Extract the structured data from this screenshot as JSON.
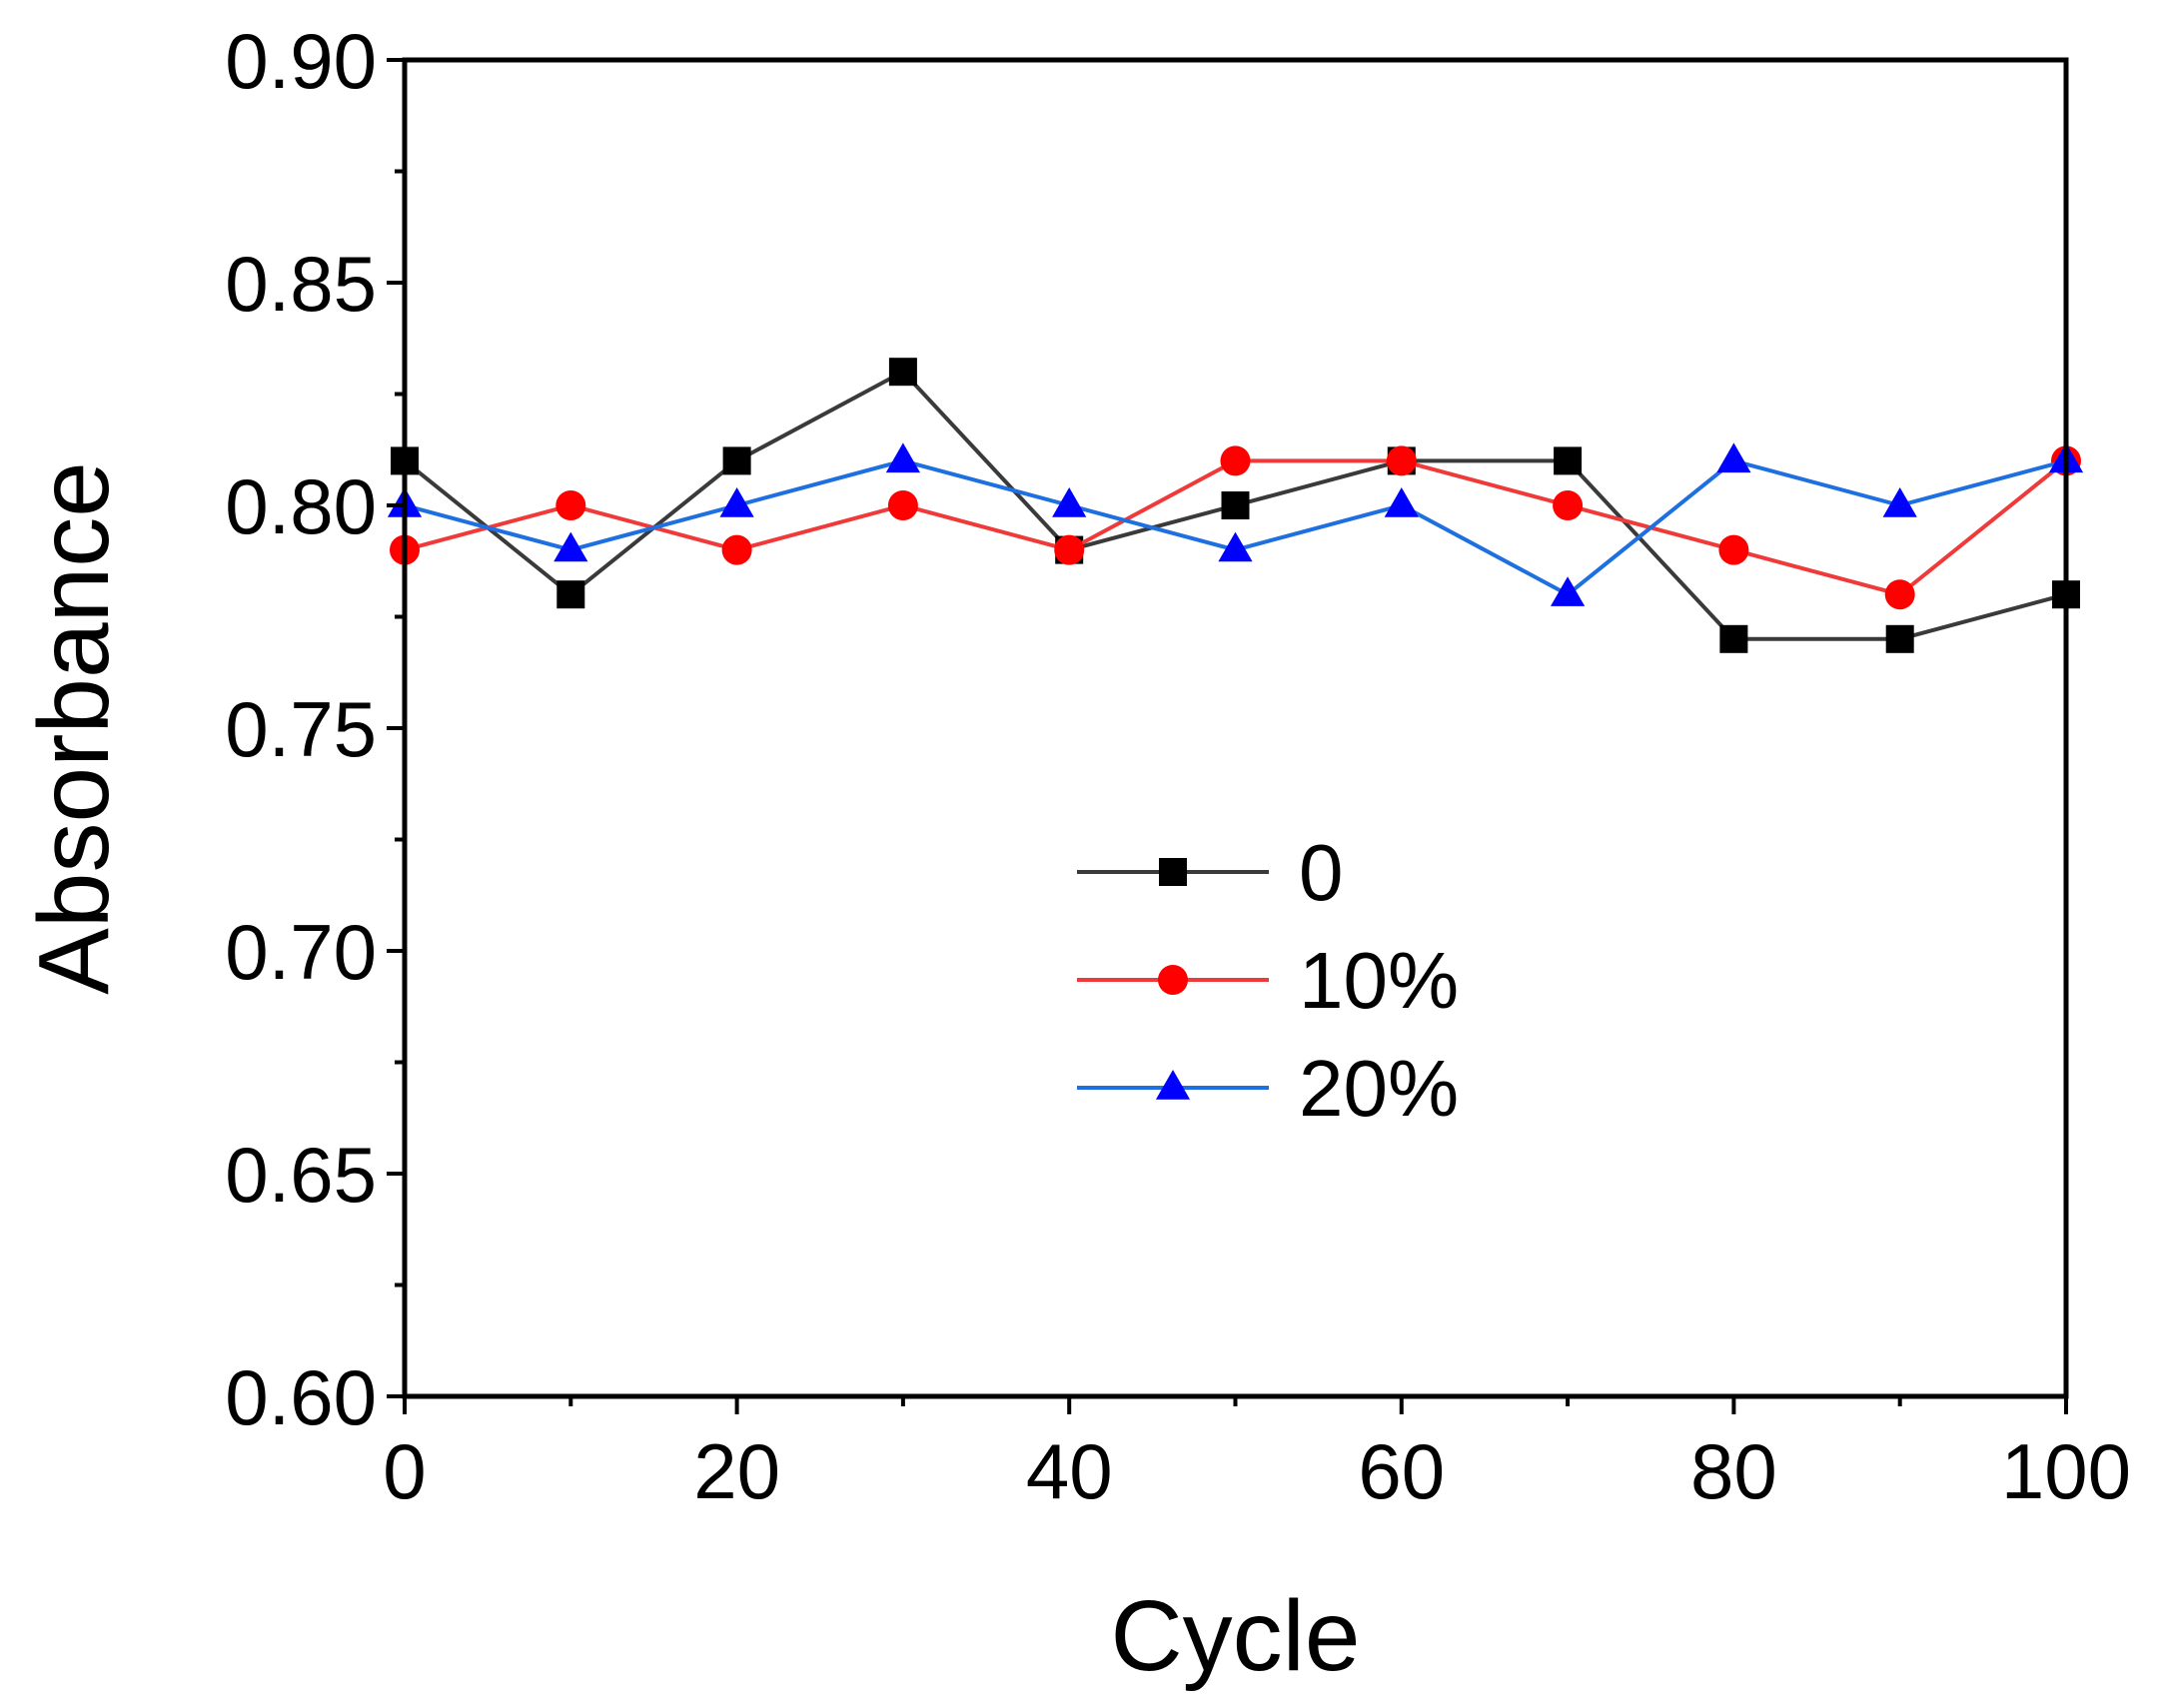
{
  "chart_data": {
    "type": "line",
    "title": "",
    "xlabel": "Cycle",
    "ylabel": "Absorbance",
    "xlim": [
      0,
      100
    ],
    "ylim": [
      0.6,
      0.9
    ],
    "x": [
      0,
      10,
      20,
      30,
      40,
      50,
      60,
      70,
      80,
      90,
      100
    ],
    "x_ticks": [
      0,
      20,
      40,
      60,
      80,
      100
    ],
    "x_tick_labels": [
      "0",
      "20",
      "40",
      "60",
      "80",
      "100"
    ],
    "y_ticks": [
      0.6,
      0.65,
      0.7,
      0.75,
      0.8,
      0.85,
      0.9
    ],
    "y_tick_labels": [
      "0.60",
      "0.65",
      "0.70",
      "0.75",
      "0.80",
      "0.85",
      "0.90"
    ],
    "grid": false,
    "legend_position": "center",
    "series": [
      {
        "name": "0",
        "marker": "square",
        "color": "#000000",
        "line_color": "#3a3a3a",
        "values": [
          0.81,
          0.78,
          0.81,
          0.83,
          0.79,
          0.8,
          0.81,
          0.81,
          0.77,
          0.77,
          0.78
        ]
      },
      {
        "name": "10%",
        "marker": "circle",
        "color": "#ff0000",
        "line_color": "#f03a3a",
        "values": [
          0.79,
          0.8,
          0.79,
          0.8,
          0.79,
          0.81,
          0.81,
          0.8,
          0.79,
          0.78,
          0.81
        ]
      },
      {
        "name": "20%",
        "marker": "triangle",
        "color": "#0000ff",
        "line_color": "#1e6fe0",
        "values": [
          0.8,
          0.79,
          0.8,
          0.81,
          0.8,
          0.79,
          0.8,
          0.78,
          0.81,
          0.8,
          0.81
        ]
      }
    ]
  }
}
